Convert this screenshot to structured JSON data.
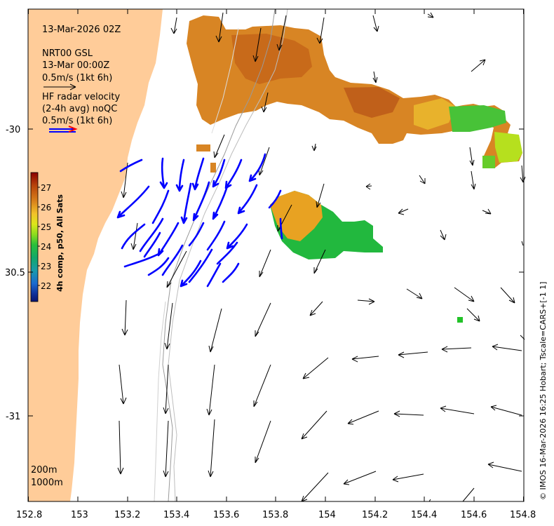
{
  "title": {
    "timestamp": "13-Mar-2026 02Z",
    "source_label": "NRT00 GSL",
    "source_time": "13-Mar 00:00Z",
    "arrow_scale_black": "0.5m/s (1kt 6h)",
    "hf_label_1": "HF radar velocity",
    "hf_label_2": "(2-4h avg) noQC",
    "arrow_scale_blue": "0.5m/s (1kt 6h)"
  },
  "colorbar": {
    "title": "4h comp, p50, All Sats",
    "ticks": [
      "27",
      "26",
      "25",
      "24",
      "23",
      "22"
    ],
    "stops": [
      "#8b0000",
      "#b8440a",
      "#d8801a",
      "#f2c22a",
      "#dde61a",
      "#8cdc1e",
      "#2abf3a",
      "#12a86a",
      "#1a9aaa",
      "#1a6ad0",
      "#10309a",
      "#0a1470"
    ]
  },
  "axes": {
    "x_ticks": [
      "152.8",
      "153",
      "153.2",
      "153.4",
      "153.6",
      "153.8",
      "154",
      "154.2",
      "154.4",
      "154.6",
      "154.8"
    ],
    "y_ticks": [
      "-30",
      "30.5",
      "-31"
    ]
  },
  "depth_legend": {
    "line1": "200m",
    "line2": "1000m"
  },
  "credit": "© IMOS 16-Mar-2026 16:25 Hobart; Tscale=CARS+[-1 1]",
  "colors": {
    "land": "#ffcc99",
    "ocean": "#ffffff",
    "hf_arrow": "#0000ff",
    "model_arrow": "#000000",
    "bathy_line": "#9a9a9a",
    "scale_arrow_red": "#ff0000"
  }
}
